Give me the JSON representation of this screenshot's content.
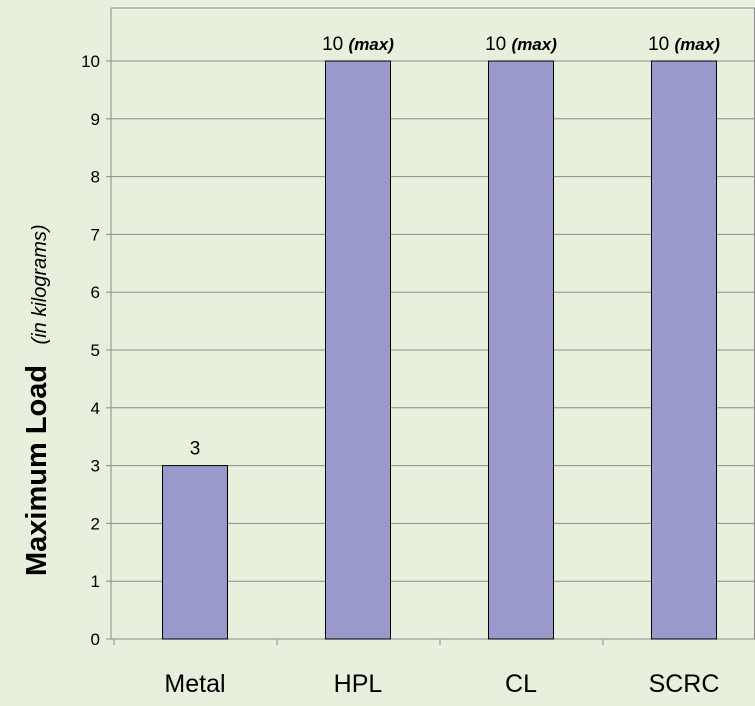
{
  "chart_data": {
    "type": "bar",
    "categories": [
      "Metal",
      "HPL",
      "CL",
      "SCRC"
    ],
    "values": [
      3,
      10,
      10,
      10
    ],
    "data_labels": [
      {
        "value": "3",
        "suffix": ""
      },
      {
        "value": "10 ",
        "suffix": "(max)"
      },
      {
        "value": "10 ",
        "suffix": "(max)"
      },
      {
        "value": "10 ",
        "suffix": "(max)"
      }
    ],
    "ylabel": "Maximum Load",
    "ylabel_unit": "(in kilograms)",
    "ylim": [
      0,
      10
    ],
    "yticks": [
      0,
      1,
      2,
      3,
      4,
      5,
      6,
      7,
      8,
      9,
      10
    ],
    "grid": true,
    "legend": "none"
  },
  "colors": {
    "background": "#e6f0dc",
    "bar_fill": "#9999cc",
    "bar_stroke": "#000000",
    "gridline": "#8c8c8c",
    "axis": "#8c8c8c"
  }
}
